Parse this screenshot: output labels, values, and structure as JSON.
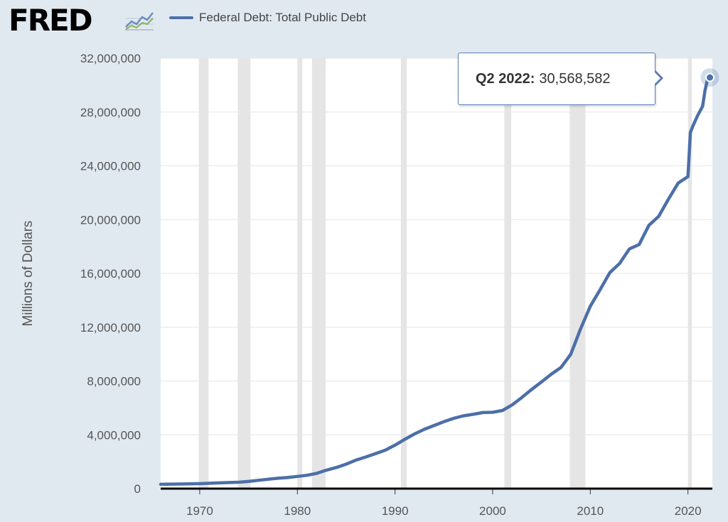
{
  "header": {
    "logo_text": "FRED",
    "logo_icon": "trend-chart-icon"
  },
  "legend": {
    "label": "Federal Debt: Total Public Debt",
    "color": "#4d6fa8"
  },
  "tooltip": {
    "period": "Q2 2022:",
    "value": "30,568,582"
  },
  "chart_data": {
    "type": "line",
    "ylabel": "Millions of Dollars",
    "xlim": [
      1966,
      2022.5
    ],
    "ylim": [
      0,
      32000000
    ],
    "x_ticks": [
      "1970",
      "1980",
      "1990",
      "2000",
      "2010",
      "2020"
    ],
    "y_ticks": [
      "0",
      "4,000,000",
      "8,000,000",
      "12,000,000",
      "16,000,000",
      "20,000,000",
      "24,000,000",
      "28,000,000",
      "32,000,000"
    ],
    "grid": true,
    "recessions": [
      [
        1969.9,
        1970.9
      ],
      [
        1973.9,
        1975.2
      ],
      [
        1980.0,
        1980.5
      ],
      [
        1981.5,
        1982.9
      ],
      [
        1990.6,
        1991.2
      ],
      [
        2001.2,
        2001.9
      ],
      [
        2007.9,
        2009.5
      ],
      [
        2020.0,
        2020.4
      ]
    ],
    "series": [
      {
        "name": "Federal Debt: Total Public Debt",
        "color": "#4d6fa8",
        "points": [
          [
            1966.0,
            320000
          ],
          [
            1968.0,
            345000
          ],
          [
            1970.0,
            370000
          ],
          [
            1972.0,
            427000
          ],
          [
            1974.0,
            475000
          ],
          [
            1975.0,
            533000
          ],
          [
            1976.0,
            620000
          ],
          [
            1977.0,
            699000
          ],
          [
            1978.0,
            772000
          ],
          [
            1979.0,
            826000
          ],
          [
            1980.0,
            907000
          ],
          [
            1981.0,
            994000
          ],
          [
            1982.0,
            1142000
          ],
          [
            1983.0,
            1377000
          ],
          [
            1984.0,
            1572000
          ],
          [
            1985.0,
            1823000
          ],
          [
            1986.0,
            2125000
          ],
          [
            1987.0,
            2350000
          ],
          [
            1988.0,
            2602000
          ],
          [
            1989.0,
            2857000
          ],
          [
            1990.0,
            3233000
          ],
          [
            1991.0,
            3665000
          ],
          [
            1992.0,
            4065000
          ],
          [
            1993.0,
            4411000
          ],
          [
            1994.0,
            4693000
          ],
          [
            1995.0,
            4974000
          ],
          [
            1996.0,
            5225000
          ],
          [
            1997.0,
            5413000
          ],
          [
            1998.0,
            5526000
          ],
          [
            1999.0,
            5656000
          ],
          [
            2000.0,
            5674000
          ],
          [
            2001.0,
            5807000
          ],
          [
            2002.0,
            6228000
          ],
          [
            2003.0,
            6783000
          ],
          [
            2004.0,
            7379000
          ],
          [
            2005.0,
            7933000
          ],
          [
            2006.0,
            8507000
          ],
          [
            2007.0,
            9008000
          ],
          [
            2008.0,
            9986000
          ],
          [
            2009.0,
            11876000
          ],
          [
            2010.0,
            13562000
          ],
          [
            2011.0,
            14790000
          ],
          [
            2012.0,
            16066000
          ],
          [
            2013.0,
            16738000
          ],
          [
            2014.0,
            17824000
          ],
          [
            2015.0,
            18151000
          ],
          [
            2016.0,
            19573000
          ],
          [
            2017.0,
            20245000
          ],
          [
            2018.0,
            21516000
          ],
          [
            2019.0,
            22719000
          ],
          [
            2020.0,
            23201000
          ],
          [
            2020.25,
            26477000
          ],
          [
            2020.5,
            26945000
          ],
          [
            2021.0,
            27748000
          ],
          [
            2021.5,
            28428000
          ],
          [
            2021.75,
            29617000
          ],
          [
            2022.0,
            30401000
          ],
          [
            2022.25,
            30568582
          ]
        ]
      }
    ],
    "highlight": {
      "x": 2022.25,
      "y": 30568582
    }
  }
}
